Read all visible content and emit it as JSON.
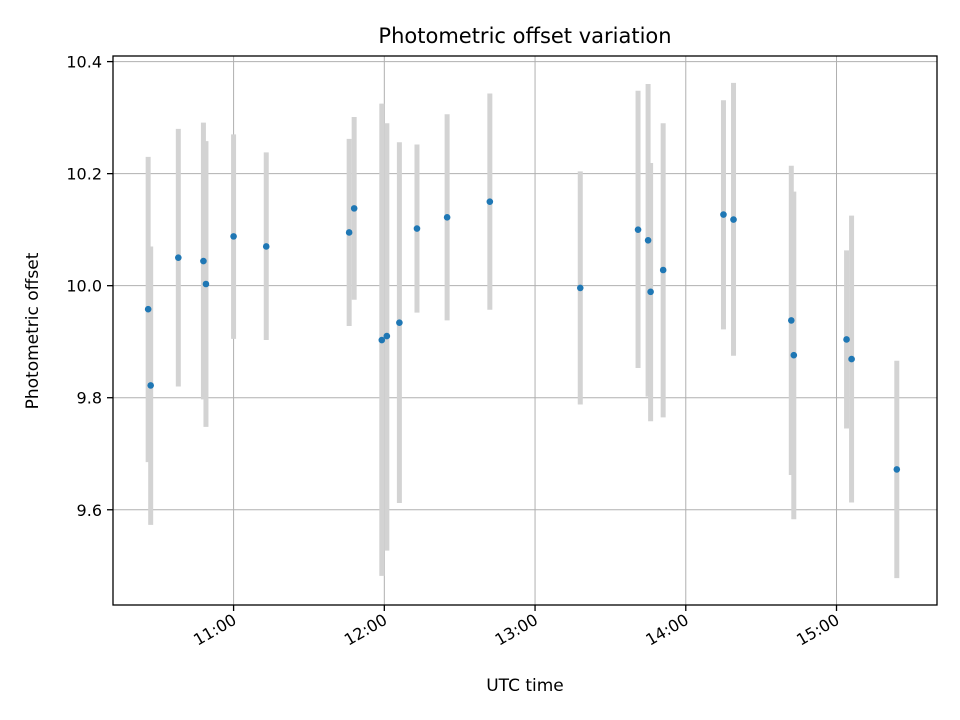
{
  "chart_data": {
    "type": "scatter",
    "title": "Photometric offset variation",
    "xlabel": "UTC time",
    "ylabel": "Photometric offset",
    "x_axis": {
      "kind": "time",
      "range": [
        "10:12",
        "15:40"
      ],
      "ticks": [
        "11:00",
        "12:00",
        "13:00",
        "14:00",
        "15:00"
      ]
    },
    "y_axis": {
      "range": [
        9.43,
        10.41
      ],
      "ticks": [
        9.6,
        9.8,
        10.0,
        10.2,
        10.4
      ],
      "tick_labels": [
        "9.6",
        "9.8",
        "10.0",
        "10.2",
        "10.4"
      ]
    },
    "grid": true,
    "colors": {
      "points": "#1f77b4",
      "errorbars": "#d3d3d3",
      "grid": "#b0b0b0"
    },
    "points": [
      {
        "time": "10:26",
        "y": 9.958,
        "low": 9.685,
        "high": 10.23
      },
      {
        "time": "10:27",
        "y": 9.822,
        "low": 9.573,
        "high": 10.07
      },
      {
        "time": "10:38",
        "y": 10.05,
        "low": 9.82,
        "high": 10.28
      },
      {
        "time": "10:48",
        "y": 10.044,
        "low": 9.797,
        "high": 10.291
      },
      {
        "time": "10:49",
        "y": 10.003,
        "low": 9.748,
        "high": 10.258
      },
      {
        "time": "11:00",
        "y": 10.088,
        "low": 9.905,
        "high": 10.27
      },
      {
        "time": "11:13",
        "y": 10.07,
        "low": 9.903,
        "high": 10.238
      },
      {
        "time": "11:46",
        "y": 10.095,
        "low": 9.928,
        "high": 10.262
      },
      {
        "time": "11:48",
        "y": 10.138,
        "low": 9.975,
        "high": 10.301
      },
      {
        "time": "11:59",
        "y": 9.903,
        "low": 9.482,
        "high": 10.325
      },
      {
        "time": "12:01",
        "y": 9.91,
        "low": 9.527,
        "high": 10.29
      },
      {
        "time": "12:06",
        "y": 9.934,
        "low": 9.612,
        "high": 10.256
      },
      {
        "time": "12:13",
        "y": 10.102,
        "low": 9.952,
        "high": 10.252
      },
      {
        "time": "12:25",
        "y": 10.122,
        "low": 9.938,
        "high": 10.306
      },
      {
        "time": "12:42",
        "y": 10.15,
        "low": 9.957,
        "high": 10.343
      },
      {
        "time": "13:18",
        "y": 9.996,
        "low": 9.788,
        "high": 10.204
      },
      {
        "time": "13:41",
        "y": 10.1,
        "low": 9.853,
        "high": 10.348
      },
      {
        "time": "13:45",
        "y": 10.081,
        "low": 9.802,
        "high": 10.36
      },
      {
        "time": "13:46",
        "y": 9.989,
        "low": 9.758,
        "high": 10.219
      },
      {
        "time": "13:51",
        "y": 10.028,
        "low": 9.765,
        "high": 10.29
      },
      {
        "time": "14:15",
        "y": 10.127,
        "low": 9.922,
        "high": 10.331
      },
      {
        "time": "14:19",
        "y": 10.118,
        "low": 9.875,
        "high": 10.362
      },
      {
        "time": "14:42",
        "y": 9.938,
        "low": 9.662,
        "high": 10.214
      },
      {
        "time": "14:43",
        "y": 9.876,
        "low": 9.583,
        "high": 10.168
      },
      {
        "time": "15:04",
        "y": 9.904,
        "low": 9.745,
        "high": 10.063
      },
      {
        "time": "15:06",
        "y": 9.869,
        "low": 9.613,
        "high": 10.125
      },
      {
        "time": "15:24",
        "y": 9.672,
        "low": 9.478,
        "high": 9.866
      }
    ]
  }
}
